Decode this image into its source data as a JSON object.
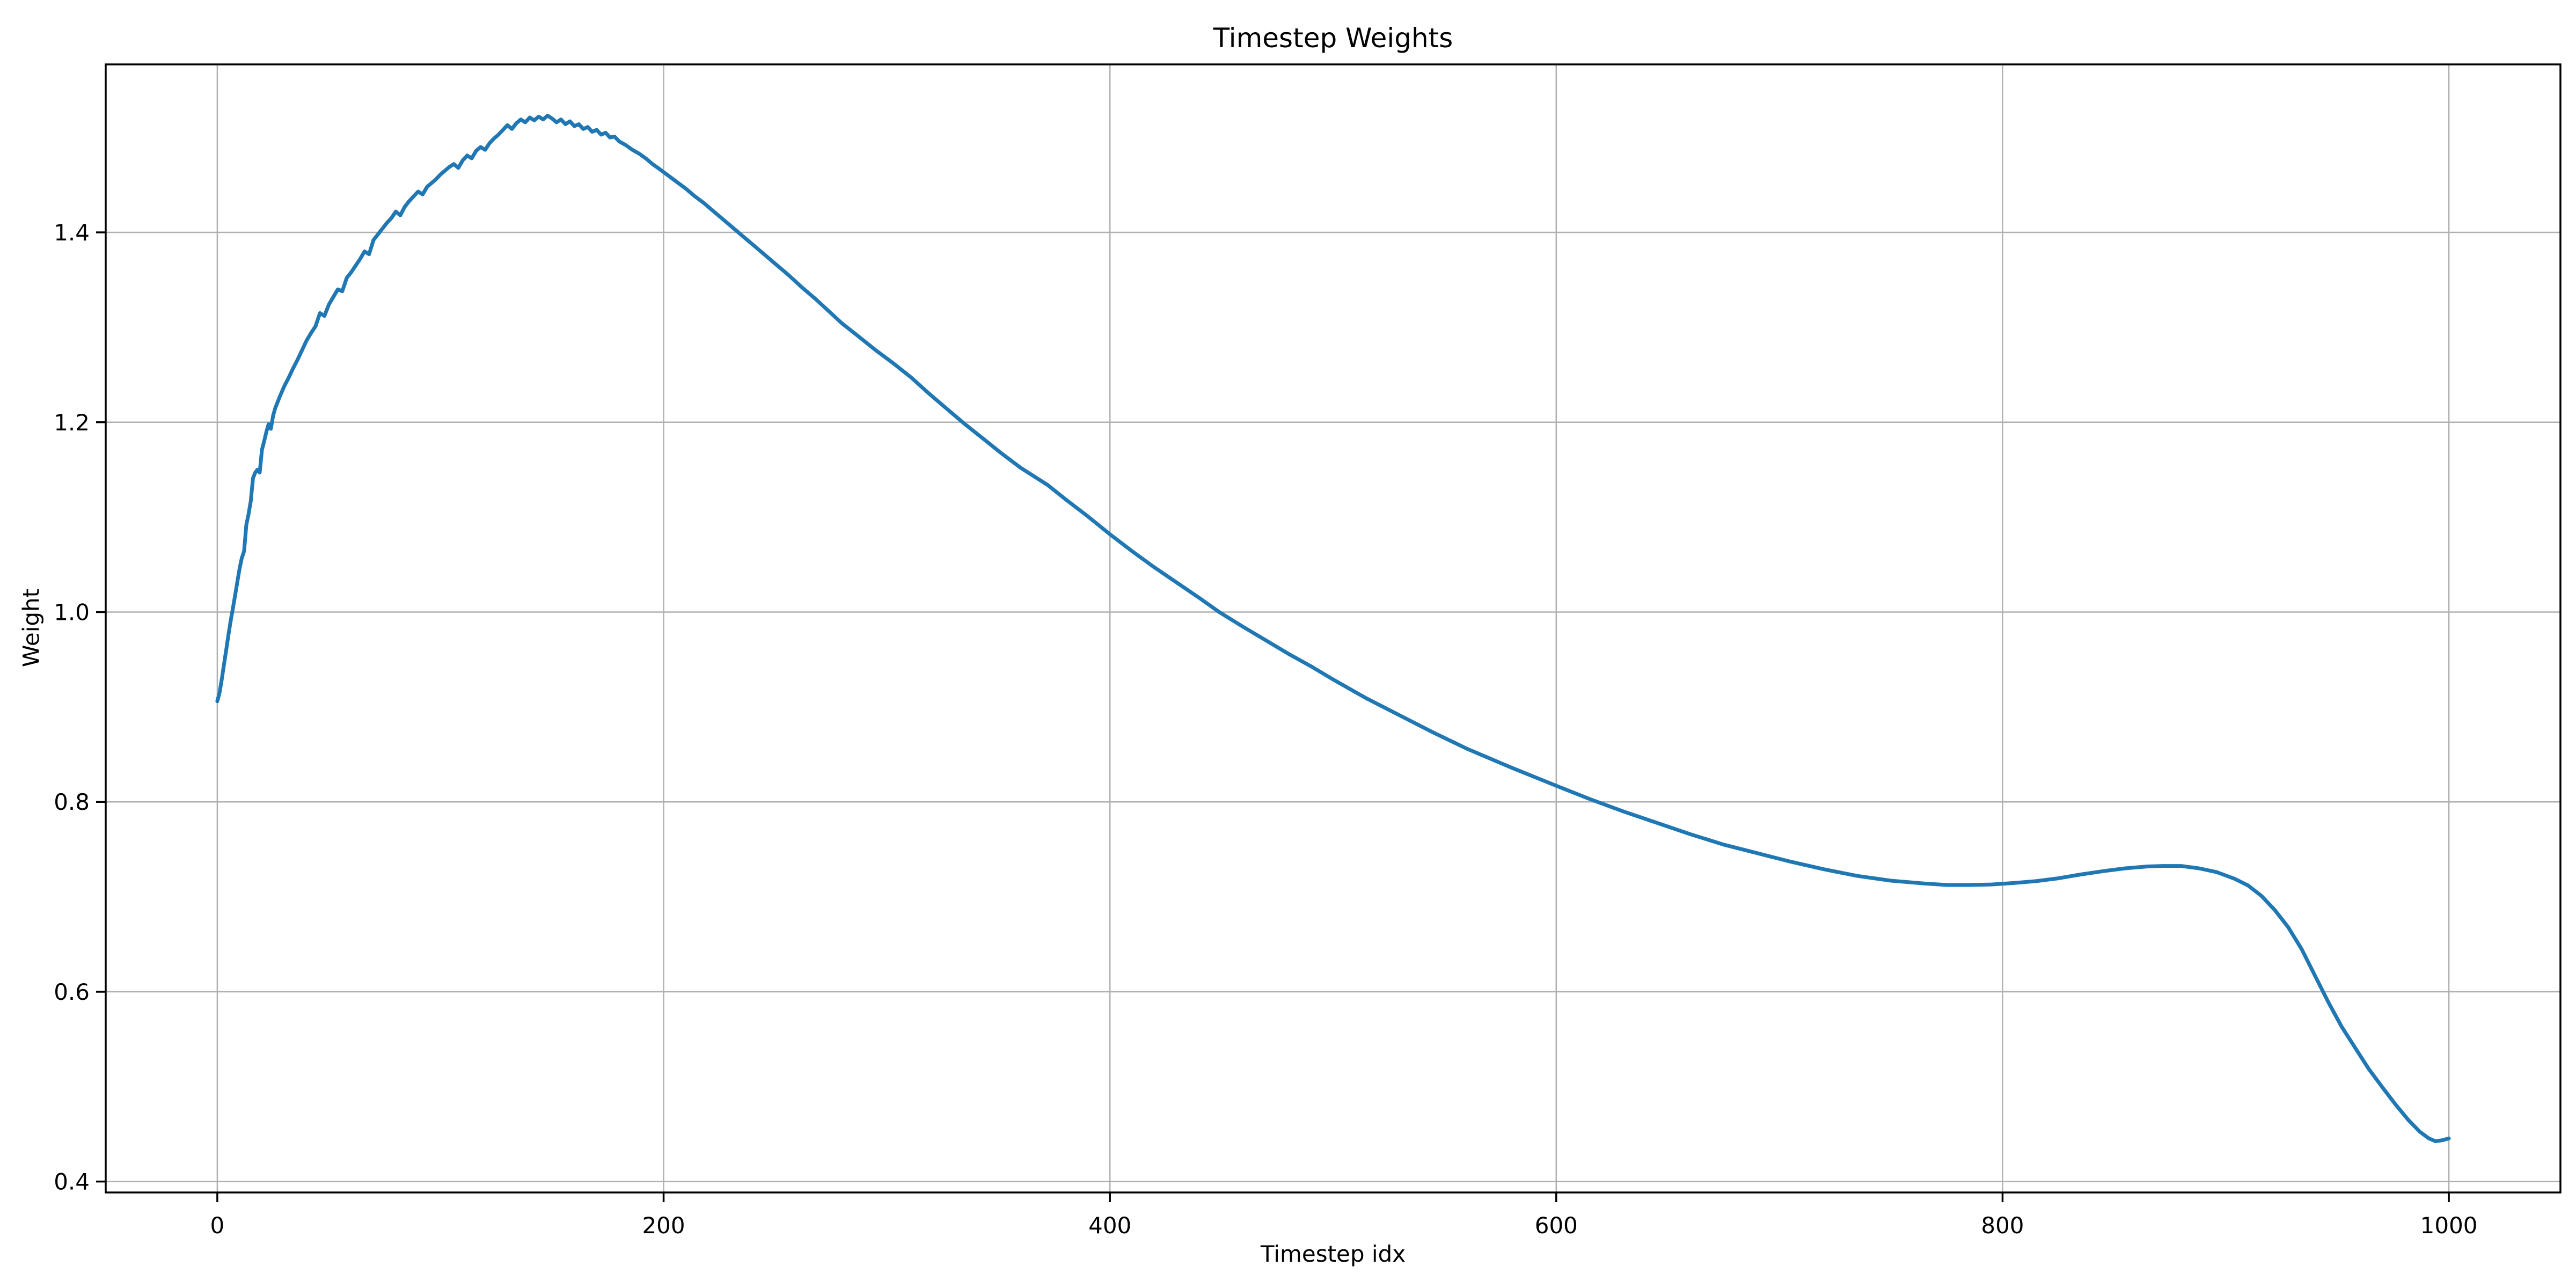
{
  "title": "Timestep Weights",
  "axes": {
    "xlabel": "Timestep idx",
    "ylabel": "Weight"
  },
  "colors": {
    "background": "#ffffff",
    "line": "#1f77b4",
    "grid": "#b0b0b0",
    "spine": "#000000",
    "text": "#000000"
  },
  "chart_data": {
    "type": "line",
    "title": "Timestep Weights",
    "xlabel": "Timestep idx",
    "ylabel": "Weight",
    "xlim": [
      -50,
      1050
    ],
    "ylim": [
      0.3885,
      1.577
    ],
    "xticks": [
      0,
      200,
      400,
      600,
      800,
      1000
    ],
    "yticks": [
      0.4,
      0.6,
      0.8,
      1.0,
      1.2,
      1.4
    ],
    "grid": true,
    "legend": "none",
    "series": [
      {
        "name": "timestep_weight",
        "color": "#1f77b4",
        "points": [
          [
            0,
            0.906
          ],
          [
            1,
            0.915
          ],
          [
            2,
            0.929
          ],
          [
            3,
            0.945
          ],
          [
            4,
            0.96
          ],
          [
            5,
            0.976
          ],
          [
            6,
            0.991
          ],
          [
            7,
            1.004
          ],
          [
            8,
            1.018
          ],
          [
            9,
            1.032
          ],
          [
            10,
            1.046
          ],
          [
            11,
            1.057
          ],
          [
            12,
            1.064
          ],
          [
            13,
            1.092
          ],
          [
            14,
            1.103
          ],
          [
            15,
            1.117
          ],
          [
            16,
            1.141
          ],
          [
            17,
            1.147
          ],
          [
            18,
            1.15
          ],
          [
            19,
            1.147
          ],
          [
            20,
            1.171
          ],
          [
            21,
            1.18
          ],
          [
            22,
            1.19
          ],
          [
            23,
            1.198
          ],
          [
            24,
            1.193
          ],
          [
            25,
            1.207
          ],
          [
            26,
            1.215
          ],
          [
            27,
            1.221
          ],
          [
            28,
            1.227
          ],
          [
            30,
            1.238
          ],
          [
            32,
            1.247
          ],
          [
            34,
            1.257
          ],
          [
            36,
            1.266
          ],
          [
            38,
            1.276
          ],
          [
            40,
            1.286
          ],
          [
            42,
            1.294
          ],
          [
            44,
            1.301
          ],
          [
            46,
            1.315
          ],
          [
            48,
            1.312
          ],
          [
            50,
            1.324
          ],
          [
            52,
            1.332
          ],
          [
            54,
            1.34
          ],
          [
            56,
            1.338
          ],
          [
            58,
            1.352
          ],
          [
            60,
            1.358
          ],
          [
            62,
            1.365
          ],
          [
            64,
            1.372
          ],
          [
            66,
            1.38
          ],
          [
            68,
            1.377
          ],
          [
            70,
            1.392
          ],
          [
            72,
            1.398
          ],
          [
            74,
            1.404
          ],
          [
            76,
            1.41
          ],
          [
            78,
            1.415
          ],
          [
            80,
            1.422
          ],
          [
            82,
            1.418
          ],
          [
            84,
            1.427
          ],
          [
            86,
            1.433
          ],
          [
            88,
            1.438
          ],
          [
            90,
            1.443
          ],
          [
            92,
            1.44
          ],
          [
            94,
            1.448
          ],
          [
            96,
            1.452
          ],
          [
            98,
            1.456
          ],
          [
            100,
            1.461
          ],
          [
            102,
            1.465
          ],
          [
            104,
            1.469
          ],
          [
            106,
            1.472
          ],
          [
            108,
            1.468
          ],
          [
            110,
            1.476
          ],
          [
            112,
            1.481
          ],
          [
            114,
            1.478
          ],
          [
            116,
            1.486
          ],
          [
            118,
            1.49
          ],
          [
            120,
            1.487
          ],
          [
            122,
            1.494
          ],
          [
            124,
            1.499
          ],
          [
            126,
            1.503
          ],
          [
            128,
            1.508
          ],
          [
            130,
            1.513
          ],
          [
            132,
            1.509
          ],
          [
            134,
            1.515
          ],
          [
            136,
            1.519
          ],
          [
            138,
            1.516
          ],
          [
            140,
            1.521
          ],
          [
            142,
            1.518
          ],
          [
            144,
            1.522
          ],
          [
            146,
            1.519
          ],
          [
            148,
            1.523
          ],
          [
            150,
            1.52
          ],
          [
            152,
            1.516
          ],
          [
            154,
            1.519
          ],
          [
            156,
            1.514
          ],
          [
            158,
            1.517
          ],
          [
            160,
            1.512
          ],
          [
            162,
            1.514
          ],
          [
            164,
            1.509
          ],
          [
            166,
            1.511
          ],
          [
            168,
            1.506
          ],
          [
            170,
            1.508
          ],
          [
            172,
            1.503
          ],
          [
            174,
            1.505
          ],
          [
            176,
            1.5
          ],
          [
            178,
            1.501
          ],
          [
            180,
            1.496
          ],
          [
            183,
            1.492
          ],
          [
            186,
            1.487
          ],
          [
            189,
            1.483
          ],
          [
            192,
            1.478
          ],
          [
            195,
            1.472
          ],
          [
            198,
            1.467
          ],
          [
            202,
            1.46
          ],
          [
            206,
            1.453
          ],
          [
            210,
            1.446
          ],
          [
            214,
            1.438
          ],
          [
            218,
            1.431
          ],
          [
            222,
            1.423
          ],
          [
            226,
            1.415
          ],
          [
            230,
            1.407
          ],
          [
            235,
            1.397
          ],
          [
            240,
            1.387
          ],
          [
            245,
            1.377
          ],
          [
            250,
            1.367
          ],
          [
            256,
            1.355
          ],
          [
            262,
            1.342
          ],
          [
            268,
            1.33
          ],
          [
            274,
            1.317
          ],
          [
            280,
            1.304
          ],
          [
            287,
            1.291
          ],
          [
            295,
            1.276
          ],
          [
            303,
            1.262
          ],
          [
            311,
            1.247
          ],
          [
            319,
            1.23
          ],
          [
            327,
            1.214
          ],
          [
            335,
            1.198
          ],
          [
            343,
            1.183
          ],
          [
            351,
            1.168
          ],
          [
            360,
            1.152
          ],
          [
            372,
            1.134
          ],
          [
            380,
            1.119
          ],
          [
            390,
            1.101
          ],
          [
            400,
            1.082
          ],
          [
            410,
            1.064
          ],
          [
            420,
            1.047
          ],
          [
            430,
            1.031
          ],
          [
            440,
            1.015
          ],
          [
            449,
            1.0
          ],
          [
            460,
            0.984
          ],
          [
            470,
            0.97
          ],
          [
            480,
            0.956
          ],
          [
            490,
            0.943
          ],
          [
            500,
            0.929
          ],
          [
            515,
            0.909
          ],
          [
            530,
            0.891
          ],
          [
            545,
            0.873
          ],
          [
            560,
            0.856
          ],
          [
            580,
            0.836
          ],
          [
            600,
            0.817
          ],
          [
            615,
            0.803
          ],
          [
            630,
            0.79
          ],
          [
            645,
            0.778
          ],
          [
            660,
            0.766
          ],
          [
            675,
            0.755
          ],
          [
            690,
            0.746
          ],
          [
            705,
            0.737
          ],
          [
            720,
            0.729
          ],
          [
            735,
            0.722
          ],
          [
            750,
            0.717
          ],
          [
            765,
            0.714
          ],
          [
            775,
            0.7125
          ],
          [
            785,
            0.7125
          ],
          [
            795,
            0.713
          ],
          [
            805,
            0.7145
          ],
          [
            815,
            0.7165
          ],
          [
            825,
            0.7195
          ],
          [
            835,
            0.7235
          ],
          [
            845,
            0.727
          ],
          [
            855,
            0.73
          ],
          [
            865,
            0.732
          ],
          [
            872,
            0.7325
          ],
          [
            880,
            0.7325
          ],
          [
            888,
            0.73
          ],
          [
            896,
            0.726
          ],
          [
            904,
            0.719
          ],
          [
            910,
            0.712
          ],
          [
            916,
            0.701
          ],
          [
            922,
            0.686
          ],
          [
            928,
            0.668
          ],
          [
            934,
            0.645
          ],
          [
            940,
            0.617
          ],
          [
            946,
            0.589
          ],
          [
            952,
            0.563
          ],
          [
            958,
            0.541
          ],
          [
            964,
            0.519
          ],
          [
            970,
            0.5
          ],
          [
            976,
            0.4815
          ],
          [
            982,
            0.4645
          ],
          [
            987,
            0.4525
          ],
          [
            991,
            0.4455
          ],
          [
            994,
            0.4425
          ],
          [
            997,
            0.4435
          ],
          [
            1000,
            0.4455
          ]
        ]
      }
    ]
  }
}
